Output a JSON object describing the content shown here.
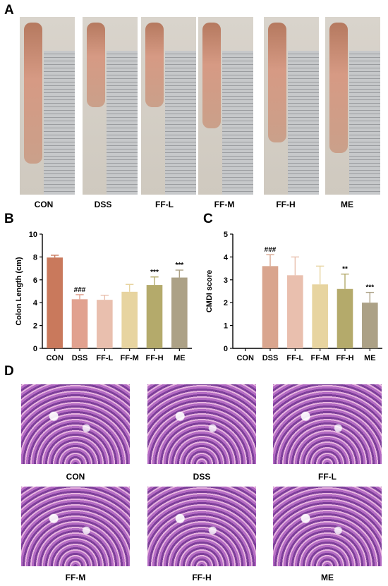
{
  "panels": {
    "a": "A",
    "b": "B",
    "c": "C",
    "d": "D"
  },
  "photo_labels": [
    "CON",
    "DSS",
    "FF-L",
    "FF-M",
    "FF-H",
    "ME"
  ],
  "histology_labels": [
    "CON",
    "DSS",
    "FF-L",
    "FF-M",
    "FF-H",
    "ME"
  ],
  "chart_data": [
    {
      "type": "bar",
      "ylabel": "Colon Length (cm)",
      "categories": [
        "CON",
        "DSS",
        "FF-L",
        "FF-M",
        "FF-H",
        "ME"
      ],
      "values": [
        7.95,
        4.3,
        4.25,
        4.95,
        5.55,
        6.2
      ],
      "errors": [
        0.2,
        0.4,
        0.4,
        0.65,
        0.7,
        0.65
      ],
      "annotations": [
        "",
        "###",
        "",
        "",
        "***",
        "***"
      ],
      "ylim": [
        0,
        10
      ],
      "yticks": [
        0,
        2,
        4,
        6,
        8,
        10
      ],
      "colors": [
        "#c9795c",
        "#e1a18f",
        "#e9bfae",
        "#e7d4a0",
        "#b4aa6b",
        "#aca186"
      ]
    },
    {
      "type": "bar",
      "ylabel": "CMDI score",
      "categories": [
        "CON",
        "DSS",
        "FF-L",
        "FF-M",
        "FF-H",
        "ME"
      ],
      "values": [
        0,
        3.6,
        3.2,
        2.8,
        2.6,
        2.0
      ],
      "errors": [
        0,
        0.5,
        0.8,
        0.8,
        0.65,
        0.45
      ],
      "annotations": [
        "",
        "###",
        "",
        "",
        "**",
        "***"
      ],
      "ylim": [
        0,
        5
      ],
      "yticks": [
        0,
        1,
        2,
        3,
        4,
        5
      ],
      "colors": [
        "#c9795c",
        "#d9a58e",
        "#e9bfae",
        "#e7d4a0",
        "#b4aa6b",
        "#aca186"
      ]
    }
  ]
}
